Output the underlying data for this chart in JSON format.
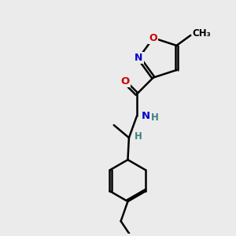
{
  "bg_color": "#ebebeb",
  "atom_colors": {
    "C": "#000000",
    "N": "#0000cc",
    "O": "#cc0000",
    "H": "#408080"
  },
  "bond_color": "#000000",
  "bond_width": 1.8,
  "dbo": 0.06,
  "figsize": [
    3.0,
    3.0
  ],
  "dpi": 100,
  "xlim": [
    0,
    10
  ],
  "ylim": [
    0,
    10
  ]
}
